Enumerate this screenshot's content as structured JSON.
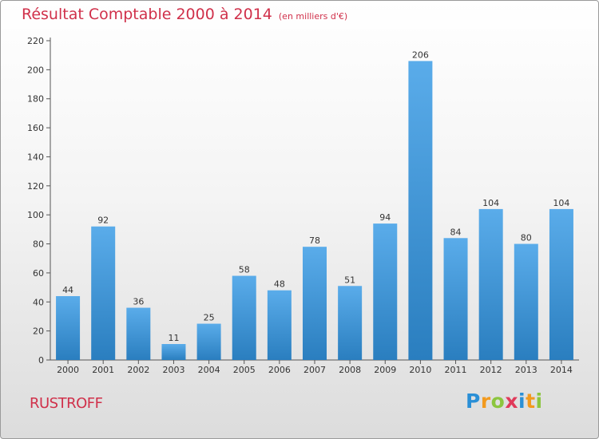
{
  "header": {
    "title": "Résultat Comptable 2000 à 2014",
    "subtitle": "(en milliers d'€)"
  },
  "commune_name": "RUSTROFF",
  "logo": {
    "text": "Proxiti",
    "letters": [
      {
        "ch": "P",
        "color": "#2a8fd6"
      },
      {
        "ch": "r",
        "color": "#f29a1e"
      },
      {
        "ch": "o",
        "color": "#8cc63f"
      },
      {
        "ch": "x",
        "color": "#e03a5a"
      },
      {
        "ch": "i",
        "color": "#2a8fd6"
      },
      {
        "ch": "t",
        "color": "#f29a1e"
      },
      {
        "ch": "i",
        "color": "#8cc63f"
      }
    ]
  },
  "colors": {
    "title": "#d0304a",
    "bar_top": "#5aacea",
    "bar_bottom": "#2a7ebf"
  },
  "chart_data": {
    "type": "bar",
    "title": "Résultat Comptable 2000 à 2014",
    "subtitle": "(en milliers d'€)",
    "categories": [
      "2000",
      "2001",
      "2002",
      "2003",
      "2004",
      "2005",
      "2006",
      "2007",
      "2008",
      "2009",
      "2010",
      "2011",
      "2012",
      "2013",
      "2014"
    ],
    "values": [
      44,
      92,
      36,
      11,
      25,
      58,
      48,
      78,
      51,
      94,
      206,
      84,
      104,
      80,
      104
    ],
    "ylim": [
      0,
      220
    ],
    "yticks": [
      0,
      20,
      40,
      60,
      80,
      100,
      120,
      140,
      160,
      180,
      200,
      220
    ],
    "grid": false,
    "data_labels": true,
    "legend": "none"
  }
}
